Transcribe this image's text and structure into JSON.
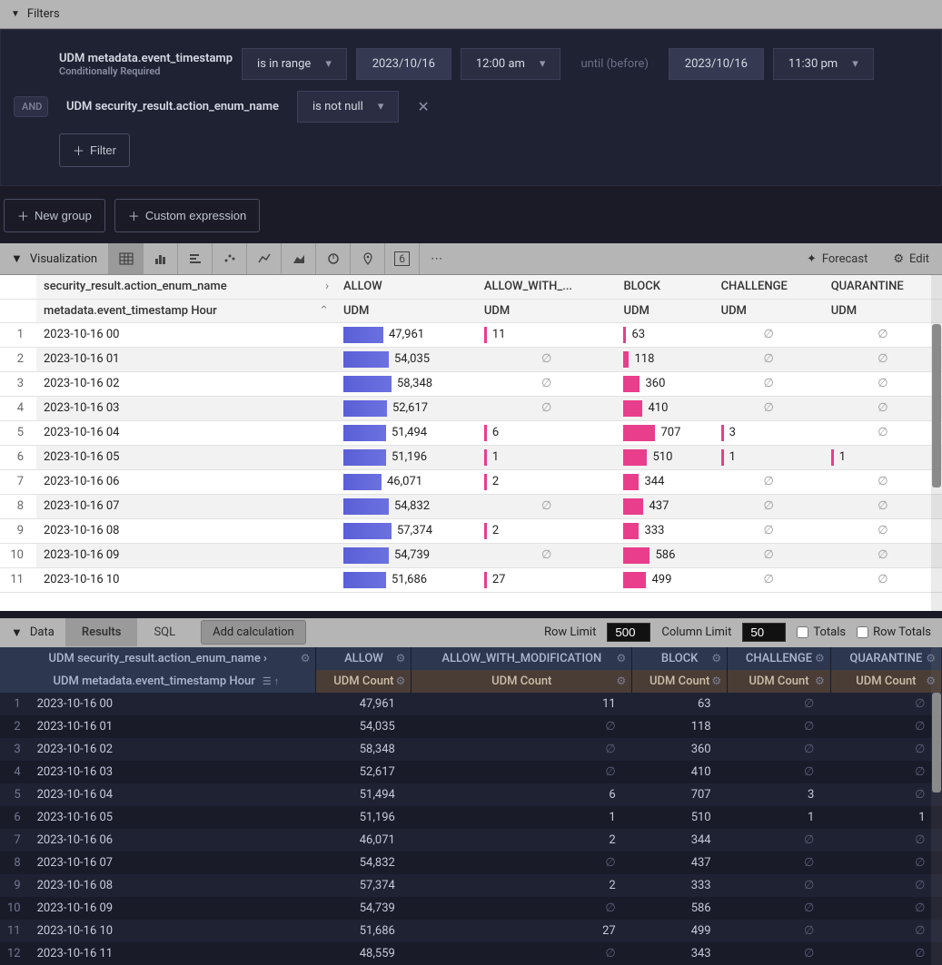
{
  "filters": {
    "title": "Filters",
    "row1": {
      "label": "UDM metadata.event_timestamp",
      "sublabel": "Conditionally Required",
      "op": "is in range",
      "date_from": "2023/10/16",
      "time_from": "12:00 am",
      "until": "until (before)",
      "date_to": "2023/10/16",
      "time_to": "11:30 pm"
    },
    "row2": {
      "and": "AND",
      "label": "UDM security_result.action_enum_name",
      "op": "is not null"
    },
    "add_filter": "Filter",
    "new_group": "New group",
    "custom_expr": "Custom expression"
  },
  "viz": {
    "title": "Visualization",
    "forecast": "Forecast",
    "edit": "Edit",
    "pivot_field": "security_result.action_enum_name",
    "row_field": "metadata.event_timestamp Hour",
    "columns": [
      "ALLOW",
      "ALLOW_WITH_...",
      "BLOCK",
      "CHALLENGE",
      "QUARANTINE"
    ],
    "sub_header": "UDM",
    "max_allow": 60000,
    "max_small": 800,
    "bar_colors": {
      "allow": "#5a5fd6",
      "other": "#e83e8c"
    },
    "rows": [
      {
        "n": 1,
        "ts": "2023-10-16 00",
        "allow": 47961,
        "allow_with": 11,
        "block": 63,
        "challenge": null,
        "quarantine": null
      },
      {
        "n": 2,
        "ts": "2023-10-16 01",
        "allow": 54035,
        "allow_with": null,
        "block": 118,
        "challenge": null,
        "quarantine": null
      },
      {
        "n": 3,
        "ts": "2023-10-16 02",
        "allow": 58348,
        "allow_with": null,
        "block": 360,
        "challenge": null,
        "quarantine": null
      },
      {
        "n": 4,
        "ts": "2023-10-16 03",
        "allow": 52617,
        "allow_with": null,
        "block": 410,
        "challenge": null,
        "quarantine": null
      },
      {
        "n": 5,
        "ts": "2023-10-16 04",
        "allow": 51494,
        "allow_with": 6,
        "block": 707,
        "challenge": 3,
        "quarantine": null
      },
      {
        "n": 6,
        "ts": "2023-10-16 05",
        "allow": 51196,
        "allow_with": 1,
        "block": 510,
        "challenge": 1,
        "quarantine": 1
      },
      {
        "n": 7,
        "ts": "2023-10-16 06",
        "allow": 46071,
        "allow_with": 2,
        "block": 344,
        "challenge": null,
        "quarantine": null
      },
      {
        "n": 8,
        "ts": "2023-10-16 07",
        "allow": 54832,
        "allow_with": null,
        "block": 437,
        "challenge": null,
        "quarantine": null
      },
      {
        "n": 9,
        "ts": "2023-10-16 08",
        "allow": 57374,
        "allow_with": 2,
        "block": 333,
        "challenge": null,
        "quarantine": null
      },
      {
        "n": 10,
        "ts": "2023-10-16 09",
        "allow": 54739,
        "allow_with": null,
        "block": 586,
        "challenge": null,
        "quarantine": null
      },
      {
        "n": 11,
        "ts": "2023-10-16 10",
        "allow": 51686,
        "allow_with": 27,
        "block": 499,
        "challenge": null,
        "quarantine": null
      }
    ]
  },
  "data": {
    "title": "Data",
    "tab_results": "Results",
    "tab_sql": "SQL",
    "add_calc": "Add calculation",
    "row_limit_lbl": "Row Limit",
    "row_limit": "500",
    "col_limit_lbl": "Column Limit",
    "col_limit": "50",
    "totals": "Totals",
    "row_totals": "Row Totals",
    "top_header_first": "UDM security_result.action_enum_name",
    "sub_header_first": "UDM metadata.event_timestamp Hour",
    "columns": [
      "ALLOW",
      "ALLOW_WITH_MODIFICATION",
      "BLOCK",
      "CHALLENGE",
      "QUARANTINE"
    ],
    "sub_header": "UDM Count",
    "rows": [
      {
        "n": 1,
        "ts": "2023-10-16 00",
        "v": [
          "47,961",
          "11",
          "63",
          "∅",
          "∅"
        ]
      },
      {
        "n": 2,
        "ts": "2023-10-16 01",
        "v": [
          "54,035",
          "∅",
          "118",
          "∅",
          "∅"
        ]
      },
      {
        "n": 3,
        "ts": "2023-10-16 02",
        "v": [
          "58,348",
          "∅",
          "360",
          "∅",
          "∅"
        ]
      },
      {
        "n": 4,
        "ts": "2023-10-16 03",
        "v": [
          "52,617",
          "∅",
          "410",
          "∅",
          "∅"
        ]
      },
      {
        "n": 5,
        "ts": "2023-10-16 04",
        "v": [
          "51,494",
          "6",
          "707",
          "3",
          "∅"
        ]
      },
      {
        "n": 6,
        "ts": "2023-10-16 05",
        "v": [
          "51,196",
          "1",
          "510",
          "1",
          "1"
        ]
      },
      {
        "n": 7,
        "ts": "2023-10-16 06",
        "v": [
          "46,071",
          "2",
          "344",
          "∅",
          "∅"
        ]
      },
      {
        "n": 8,
        "ts": "2023-10-16 07",
        "v": [
          "54,832",
          "∅",
          "437",
          "∅",
          "∅"
        ]
      },
      {
        "n": 9,
        "ts": "2023-10-16 08",
        "v": [
          "57,374",
          "2",
          "333",
          "∅",
          "∅"
        ]
      },
      {
        "n": 10,
        "ts": "2023-10-16 09",
        "v": [
          "54,739",
          "∅",
          "586",
          "∅",
          "∅"
        ]
      },
      {
        "n": 11,
        "ts": "2023-10-16 10",
        "v": [
          "51,686",
          "27",
          "499",
          "∅",
          "∅"
        ]
      },
      {
        "n": 12,
        "ts": "2023-10-16 11",
        "v": [
          "48,559",
          "∅",
          "343",
          "∅",
          "∅"
        ]
      }
    ]
  }
}
